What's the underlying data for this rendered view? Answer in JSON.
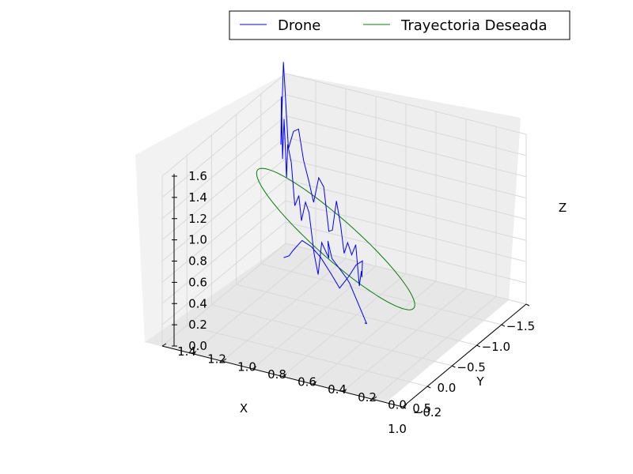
{
  "chart_data": {
    "type": "line3d",
    "title": "",
    "xlabel": "X",
    "ylabel": "Y",
    "zlabel": "Z",
    "xlim": [
      -1.5,
      1.0
    ],
    "ylim": [
      -0.2,
      1.4
    ],
    "zlim": [
      0.0,
      1.6
    ],
    "xticks": [
      -1.5,
      -1.0,
      -0.5,
      0.0,
      0.5,
      1.0
    ],
    "xtick_labels": [
      "−1.5",
      "−1.0",
      "−0.5",
      "0.0",
      "0.5",
      "1.0"
    ],
    "yticks": [
      -0.2,
      0.0,
      0.2,
      0.4,
      0.6,
      0.8,
      1.0,
      1.2,
      1.4
    ],
    "ytick_labels": [
      "−0.2",
      "0.0",
      "0.2",
      "0.4",
      "0.6",
      "0.8",
      "1.0",
      "1.2",
      "1.4"
    ],
    "zticks": [
      0.0,
      0.2,
      0.4,
      0.6,
      0.8,
      1.0,
      1.2,
      1.4,
      1.6
    ],
    "ztick_labels": [
      "0.0",
      "0.2",
      "0.4",
      "0.6",
      "0.8",
      "1.0",
      "1.2",
      "1.4",
      "1.6"
    ],
    "grid": true,
    "legend": {
      "placement": "top-right",
      "columns": 2
    },
    "series": [
      {
        "name": "Drone",
        "color": "#0000ff",
        "points": [
          [
            0.25,
            0.3,
            0.32
          ],
          [
            0.21,
            0.3,
            0.3
          ],
          [
            0.25,
            0.4,
            0.66
          ],
          [
            0.25,
            0.42,
            0.7
          ],
          [
            0.15,
            0.55,
            0.8
          ],
          [
            0.08,
            0.6,
            0.92
          ],
          [
            0.0,
            0.62,
            0.72
          ],
          [
            -0.1,
            0.7,
            0.8
          ],
          [
            -0.18,
            0.75,
            0.45
          ],
          [
            -0.25,
            0.8,
            0.6
          ],
          [
            -0.3,
            0.85,
            0.95
          ],
          [
            -0.38,
            0.9,
            1.0
          ],
          [
            -0.45,
            0.95,
            0.78
          ],
          [
            -0.55,
            1.0,
            0.96
          ],
          [
            -0.62,
            1.05,
            0.82
          ],
          [
            -0.7,
            1.1,
            1.18
          ],
          [
            -0.78,
            1.15,
            1.3
          ],
          [
            -0.85,
            1.18,
            0.95
          ],
          [
            -0.92,
            1.22,
            1.46
          ],
          [
            -0.98,
            1.25,
            1.05
          ],
          [
            -1.05,
            1.28,
            1.6
          ],
          [
            -1.1,
            1.3,
            1.12
          ],
          [
            -1.12,
            1.3,
            1.42
          ],
          [
            -1.15,
            1.3,
            1.88
          ],
          [
            -1.1,
            1.25,
            1.1
          ],
          [
            -1.05,
            1.2,
            1.3
          ],
          [
            -1.0,
            1.15,
            1.36
          ],
          [
            -0.95,
            1.1,
            1.1
          ],
          [
            -0.9,
            1.05,
            0.95
          ],
          [
            -0.85,
            1.0,
            0.78
          ],
          [
            -0.8,
            0.95,
            1.05
          ],
          [
            -0.75,
            0.9,
            1.0
          ],
          [
            -0.7,
            0.85,
            0.62
          ],
          [
            -0.62,
            0.8,
            0.68
          ],
          [
            -0.55,
            0.75,
            1.0
          ],
          [
            -0.48,
            0.7,
            0.82
          ],
          [
            -0.4,
            0.65,
            0.6
          ],
          [
            -0.32,
            0.6,
            0.75
          ],
          [
            -0.25,
            0.55,
            0.68
          ],
          [
            -0.18,
            0.5,
            0.82
          ],
          [
            -0.1,
            0.45,
            0.48
          ],
          [
            -0.05,
            0.42,
            0.65
          ],
          [
            0.0,
            0.4,
            0.62
          ],
          [
            0.05,
            0.38,
            0.8
          ],
          [
            0.12,
            0.4,
            0.78
          ],
          [
            0.2,
            0.42,
            0.7
          ],
          [
            0.27,
            0.46,
            0.6
          ],
          [
            0.32,
            0.5,
            0.74
          ],
          [
            0.38,
            0.55,
            0.9
          ],
          [
            0.42,
            0.6,
            1.0
          ],
          [
            0.45,
            0.65,
            1.05
          ],
          [
            0.48,
            0.7,
            0.95
          ],
          [
            0.5,
            0.72,
            0.9
          ],
          [
            0.52,
            0.75,
            0.88
          ]
        ]
      },
      {
        "name": "Trayectoria Deseada",
        "color": "#008000",
        "type": "ellipse",
        "center": [
          -0.23,
          0.65
        ],
        "semi_axes": [
          0.72,
          0.47
        ],
        "z_range": [
          0.2,
          1.4
        ]
      }
    ]
  }
}
